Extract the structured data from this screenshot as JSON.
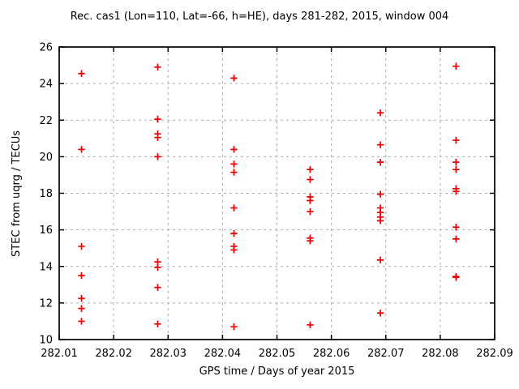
{
  "title": "Rec. cas1 (Lon=110, Lat=-66, h=HE), days 281-282, 2015, window 004",
  "chart_data": {
    "type": "scatter",
    "title": "Rec. cas1 (Lon=110, Lat=-66, h=HE), days 281-282, 2015, window 004",
    "xlabel": "GPS time / Days of year 2015",
    "ylabel": "STEC from uqrg / TECUs",
    "xlim": [
      282.01,
      282.09
    ],
    "ylim": [
      10,
      26
    ],
    "xticks": [
      282.01,
      282.02,
      282.03,
      282.04,
      282.05,
      282.06,
      282.07,
      282.08,
      282.09
    ],
    "xtick_labels": [
      "282.01",
      "282.02",
      "282.03",
      "282.04",
      "282.05",
      "282.06",
      "282.07",
      "282.08",
      "282.09"
    ],
    "yticks": [
      10,
      12,
      14,
      16,
      18,
      20,
      22,
      24,
      26
    ],
    "ytick_labels": [
      "10",
      "12",
      "14",
      "16",
      "18",
      "20",
      "22",
      "24",
      "26"
    ],
    "grid": true,
    "legend_position": "none",
    "marker": "plus",
    "marker_color": "#e60000",
    "grid_color": "#ababab",
    "border_color": "#000000",
    "series": [
      {
        "name": "STEC",
        "clusters": [
          {
            "x": 282.0141,
            "y": [
              24.55,
              20.4,
              15.1,
              13.5,
              12.25,
              11.7,
              11.0
            ]
          },
          {
            "x": 282.0281,
            "y": [
              24.9,
              22.05,
              21.25,
              21.05,
              20.0,
              14.25,
              13.95,
              12.85,
              10.85
            ]
          },
          {
            "x": 282.0421,
            "y": [
              24.3,
              20.4,
              19.6,
              19.15,
              17.2,
              15.8,
              15.1,
              14.9,
              10.7
            ]
          },
          {
            "x": 282.0561,
            "y": [
              19.3,
              18.75,
              17.8,
              17.6,
              17.0,
              15.55,
              15.4,
              10.8
            ]
          },
          {
            "x": 282.069,
            "y": [
              22.4,
              20.65,
              19.7,
              17.95,
              17.2,
              16.95,
              16.7,
              16.5,
              14.35,
              11.45
            ]
          },
          {
            "x": 282.0829,
            "y": [
              24.95,
              20.9,
              19.7,
              19.3,
              18.25,
              18.1,
              16.15,
              15.5,
              13.45,
              13.4
            ]
          }
        ]
      }
    ]
  }
}
